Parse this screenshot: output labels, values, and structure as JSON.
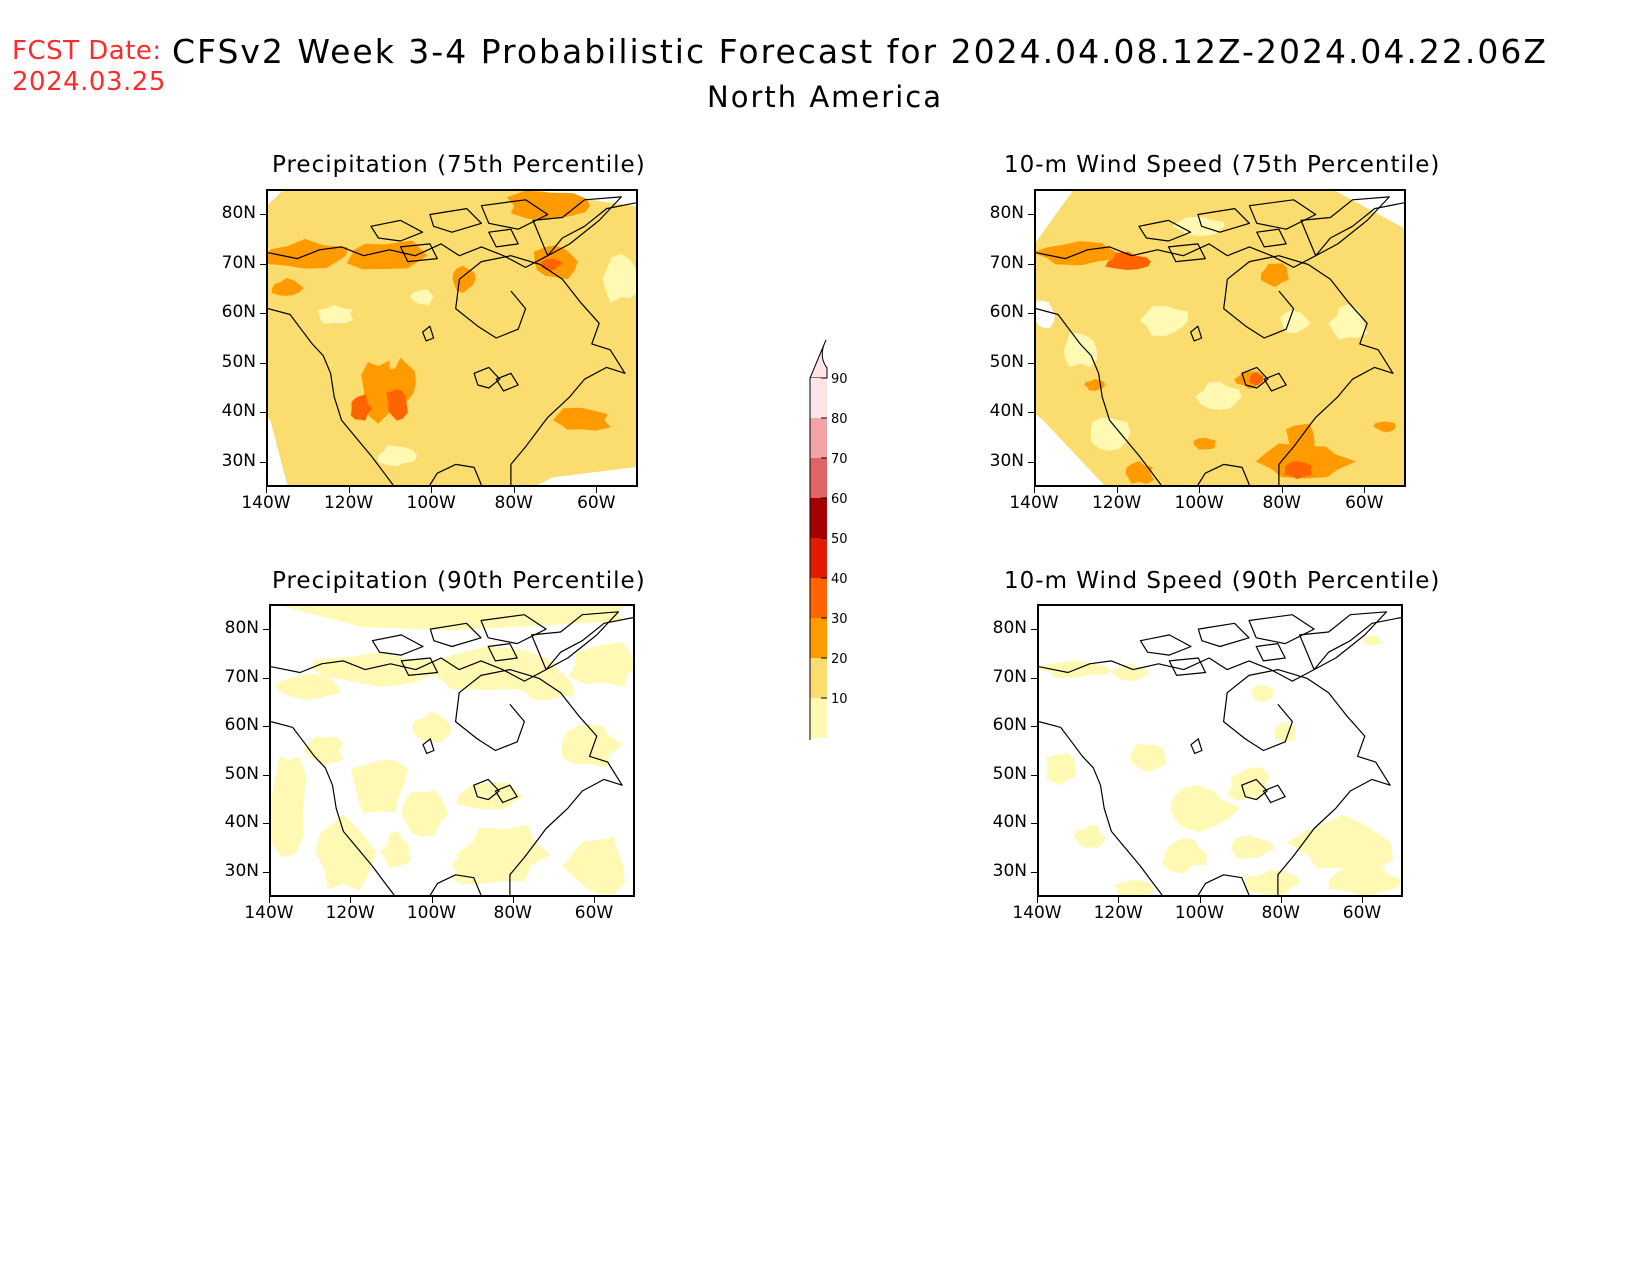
{
  "header": {
    "fcst_label": "FCST Date:",
    "fcst_date": "2024.03.25",
    "title": "CFSv2 Week 3-4 Probabilistic Forecast for 2024.04.08.12Z-2024.04.22.06Z",
    "subtitle": "North America"
  },
  "axes": {
    "lat_labels": [
      "80N",
      "70N",
      "60N",
      "50N",
      "40N",
      "30N"
    ],
    "lon_labels": [
      "140W",
      "120W",
      "100W",
      "80W",
      "60W"
    ]
  },
  "panels": [
    {
      "id": "precip75",
      "title": "Precipitation (75th Percentile)",
      "level": "high"
    },
    {
      "id": "wind75",
      "title": "10-m Wind Speed (75th Percentile)",
      "level": "high"
    },
    {
      "id": "precip90",
      "title": "Precipitation (90th Percentile)",
      "level": "low"
    },
    {
      "id": "wind90",
      "title": "10-m Wind Speed (90th Percentile)",
      "level": "low"
    }
  ],
  "colorbar": {
    "labels": [
      "90",
      "80",
      "70",
      "60",
      "50",
      "40",
      "30",
      "20",
      "10"
    ],
    "colors": [
      "#fde4e6",
      "#f4a3a6",
      "#e06464",
      "#a50000",
      "#e11a00",
      "#ff6400",
      "#ff9b00",
      "#fbdc6e",
      "#fff9b4"
    ]
  }
}
